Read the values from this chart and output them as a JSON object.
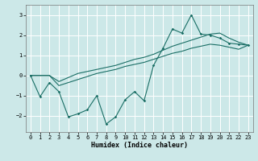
{
  "xlabel": "Humidex (Indice chaleur)",
  "bg_color": "#cce8e8",
  "line_color": "#1a6e65",
  "grid_color": "#b0d8d8",
  "x": [
    0,
    1,
    2,
    3,
    4,
    5,
    6,
    7,
    8,
    9,
    10,
    11,
    12,
    13,
    14,
    15,
    16,
    17,
    18,
    19,
    20,
    21,
    22,
    23
  ],
  "y_main": [
    0.0,
    -1.05,
    -0.35,
    -0.8,
    -2.05,
    -1.9,
    -1.7,
    -1.0,
    -2.4,
    -2.05,
    -1.2,
    -0.8,
    -1.25,
    0.5,
    1.35,
    2.3,
    2.1,
    3.0,
    2.05,
    2.0,
    1.85,
    1.6,
    1.55,
    1.5
  ],
  "y_upper": [
    0.0,
    0.0,
    0.0,
    -0.3,
    -0.1,
    0.1,
    0.2,
    0.3,
    0.4,
    0.5,
    0.65,
    0.8,
    0.9,
    1.05,
    1.25,
    1.45,
    1.6,
    1.75,
    1.9,
    2.05,
    2.1,
    1.85,
    1.65,
    1.5
  ],
  "y_lower": [
    0.0,
    0.0,
    0.0,
    -0.5,
    -0.35,
    -0.2,
    -0.05,
    0.1,
    0.2,
    0.3,
    0.45,
    0.55,
    0.65,
    0.8,
    0.95,
    1.1,
    1.2,
    1.35,
    1.45,
    1.55,
    1.5,
    1.4,
    1.3,
    1.5
  ],
  "ylim": [
    -2.8,
    3.5
  ],
  "xlim": [
    -0.5,
    23.5
  ],
  "yticks": [
    -2,
    -1,
    0,
    1,
    2,
    3
  ],
  "xticks": [
    0,
    1,
    2,
    3,
    4,
    5,
    6,
    7,
    8,
    9,
    10,
    11,
    12,
    13,
    14,
    15,
    16,
    17,
    18,
    19,
    20,
    21,
    22,
    23
  ]
}
